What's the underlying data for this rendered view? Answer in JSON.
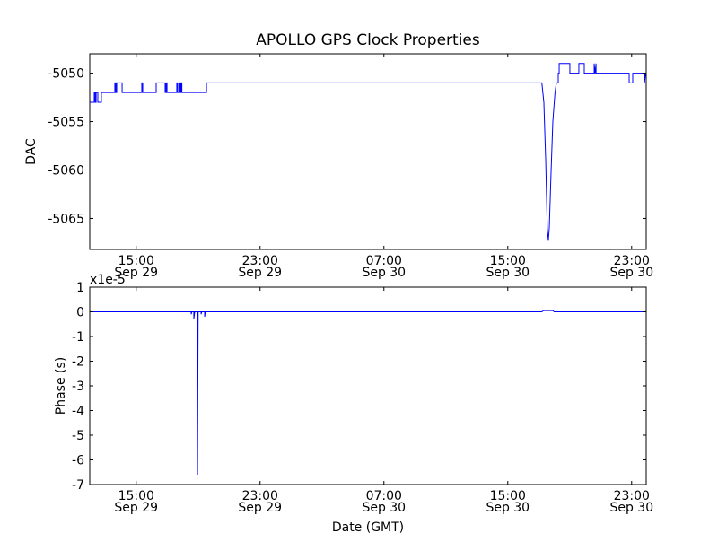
{
  "chart_data": [
    {
      "type": "line",
      "title": "APOLLO GPS Clock Properties",
      "xlabel": "",
      "ylabel": "DAC",
      "x_units": "hours since Sep 29 12:00 GMT",
      "xlim": [
        0,
        35.94
      ],
      "ylim": [
        -5068.2,
        -5048.0
      ],
      "yticks": [
        -5050,
        -5055,
        -5060,
        -5065
      ],
      "ytick_labels": [
        "-5050",
        "-5055",
        "-5060",
        "-5065"
      ],
      "xticks": [
        3,
        11,
        19,
        27,
        35
      ],
      "xtick_labels": [
        [
          "15:00",
          "Sep 29"
        ],
        [
          "23:00",
          "Sep 29"
        ],
        [
          "07:00",
          "Sep 30"
        ],
        [
          "15:00",
          "Sep 30"
        ],
        [
          "23:00",
          "Sep 30"
        ]
      ],
      "grid": false,
      "series": [
        {
          "name": "DAC",
          "color": "#0000ff",
          "points": [
            [
              0,
              -5053
            ],
            [
              0.29,
              -5053
            ],
            [
              0.29,
              -5052
            ],
            [
              0.35,
              -5052
            ],
            [
              0.35,
              -5053
            ],
            [
              0.41,
              -5053
            ],
            [
              0.41,
              -5052
            ],
            [
              0.52,
              -5052
            ],
            [
              0.52,
              -5053
            ],
            [
              0.75,
              -5053
            ],
            [
              0.75,
              -5052
            ],
            [
              1.62,
              -5052
            ],
            [
              1.62,
              -5051
            ],
            [
              1.68,
              -5051
            ],
            [
              1.68,
              -5052
            ],
            [
              1.74,
              -5052
            ],
            [
              1.74,
              -5051
            ],
            [
              2.09,
              -5051
            ],
            [
              2.09,
              -5052
            ],
            [
              3.36,
              -5052
            ],
            [
              3.36,
              -5051
            ],
            [
              3.42,
              -5051
            ],
            [
              3.42,
              -5052
            ],
            [
              4.29,
              -5052
            ],
            [
              4.29,
              -5051
            ],
            [
              4.87,
              -5051
            ],
            [
              4.87,
              -5052
            ],
            [
              4.93,
              -5052
            ],
            [
              4.93,
              -5051
            ],
            [
              4.99,
              -5051
            ],
            [
              4.99,
              -5052
            ],
            [
              5.62,
              -5052
            ],
            [
              5.62,
              -5051
            ],
            [
              5.68,
              -5051
            ],
            [
              5.68,
              -5052
            ],
            [
              5.8,
              -5052
            ],
            [
              5.8,
              -5051
            ],
            [
              5.86,
              -5051
            ],
            [
              5.86,
              -5052
            ],
            [
              5.91,
              -5052
            ],
            [
              5.91,
              -5051
            ],
            [
              5.95,
              -5051
            ],
            [
              5.95,
              -5052
            ],
            [
              7.54,
              -5052
            ],
            [
              7.54,
              -5051
            ],
            [
              29.2,
              -5051
            ],
            [
              29.33,
              -5053
            ],
            [
              29.45,
              -5059
            ],
            [
              29.55,
              -5066
            ],
            [
              29.62,
              -5067.3
            ],
            [
              29.68,
              -5066
            ],
            [
              29.8,
              -5060
            ],
            [
              29.91,
              -5055
            ],
            [
              30.05,
              -5052
            ],
            [
              30.14,
              -5051
            ],
            [
              30.26,
              -5051
            ],
            [
              30.26,
              -5050
            ],
            [
              30.32,
              -5050
            ],
            [
              30.32,
              -5049
            ],
            [
              31.01,
              -5049
            ],
            [
              31.01,
              -5050
            ],
            [
              31.59,
              -5050
            ],
            [
              31.59,
              -5049
            ],
            [
              31.94,
              -5049
            ],
            [
              31.94,
              -5050
            ],
            [
              32.58,
              -5050
            ],
            [
              32.58,
              -5049
            ],
            [
              32.64,
              -5050
            ],
            [
              32.7,
              -5049
            ],
            [
              32.7,
              -5050
            ],
            [
              34.84,
              -5050
            ],
            [
              34.84,
              -5051
            ],
            [
              35.07,
              -5051
            ],
            [
              35.07,
              -5050
            ],
            [
              35.83,
              -5050
            ],
            [
              35.83,
              -5051
            ],
            [
              35.9,
              -5050
            ],
            [
              35.94,
              -5050
            ]
          ]
        }
      ]
    },
    {
      "type": "line",
      "title": "",
      "xlabel": "Date (GMT)",
      "ylabel": "Phase (s)",
      "offset_text": "x1e-5",
      "x_units": "hours since Sep 29 12:00 GMT",
      "xlim": [
        0,
        35.94
      ],
      "ylim": [
        -7,
        1
      ],
      "yticks": [
        1,
        0,
        -1,
        -2,
        -3,
        -4,
        -5,
        -6,
        -7
      ],
      "ytick_labels": [
        "1",
        "0",
        "-1",
        "-2",
        "-3",
        "-4",
        "-5",
        "-6",
        "-7"
      ],
      "xticks": [
        3,
        11,
        19,
        27,
        35
      ],
      "xtick_labels": [
        [
          "15:00",
          "Sep 29"
        ],
        [
          "23:00",
          "Sep 29"
        ],
        [
          "07:00",
          "Sep 30"
        ],
        [
          "15:00",
          "Sep 30"
        ],
        [
          "23:00",
          "Sep 30"
        ]
      ],
      "grid": false,
      "series": [
        {
          "name": "Phase",
          "color": "#0000ff",
          "points": [
            [
              0,
              0
            ],
            [
              6.55,
              0
            ],
            [
              6.55,
              -0.1
            ],
            [
              6.6,
              0
            ],
            [
              6.72,
              0
            ],
            [
              6.72,
              -0.3
            ],
            [
              6.78,
              0
            ],
            [
              6.96,
              0
            ],
            [
              6.96,
              -6.6
            ],
            [
              7.0,
              0
            ],
            [
              7.19,
              0
            ],
            [
              7.19,
              -0.1
            ],
            [
              7.24,
              0
            ],
            [
              7.42,
              0
            ],
            [
              7.42,
              -0.2
            ],
            [
              7.47,
              0
            ],
            [
              29.2,
              0
            ],
            [
              29.3,
              0.05
            ],
            [
              29.9,
              0.05
            ],
            [
              30.0,
              0
            ],
            [
              35.94,
              0
            ]
          ]
        }
      ]
    }
  ]
}
